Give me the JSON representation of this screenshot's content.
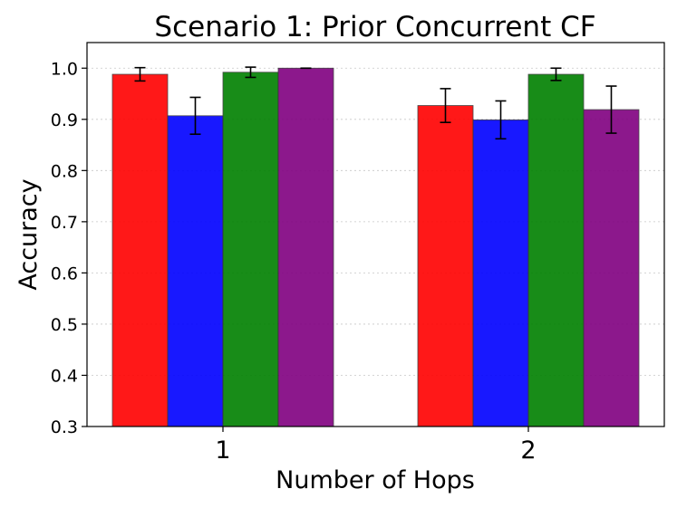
{
  "chart_data": {
    "type": "bar",
    "title": "Scenario 1: Prior Concurrent CF",
    "xlabel": "Number of Hops",
    "ylabel": "Accuracy",
    "categories": [
      "1",
      "2"
    ],
    "ylim": [
      0.3,
      1.05
    ],
    "yticks": [
      "0.3",
      "0.4",
      "0.5",
      "0.6",
      "0.7",
      "0.8",
      "0.9",
      "1.0"
    ],
    "grid": true,
    "series": [
      {
        "color": "#ff0000",
        "values": [
          0.988,
          0.927
        ],
        "errors": [
          0.013,
          0.033
        ]
      },
      {
        "color": "#0000ff",
        "values": [
          0.907,
          0.899
        ],
        "errors": [
          0.036,
          0.037
        ]
      },
      {
        "color": "#008000",
        "values": [
          0.992,
          0.988
        ],
        "errors": [
          0.01,
          0.012
        ]
      },
      {
        "color": "#800080",
        "values": [
          1.0,
          0.919
        ],
        "errors": [
          0.0,
          0.046
        ]
      }
    ]
  }
}
